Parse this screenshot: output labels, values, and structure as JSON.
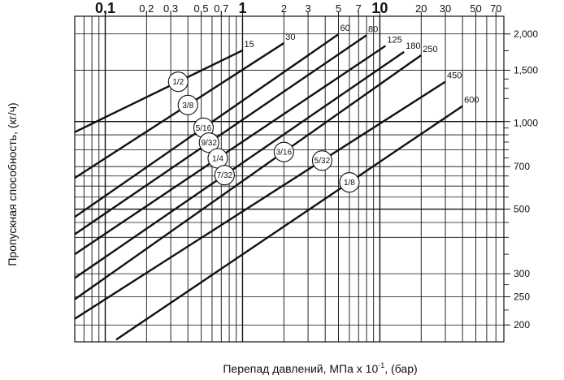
{
  "chart_data": {
    "type": "line",
    "xscale": "log",
    "yscale": "log",
    "xlim": [
      0.06,
      80
    ],
    "ylim": [
      175,
      2300
    ],
    "xlabel_text": "Перепад давлений, МПа х 10",
    "xlabel_sup": "-1",
    "xlabel_tail": ", (бар)",
    "ylabel": "Пропускная способность, (кг/ч)",
    "x_ticks": [
      {
        "value": 0.1,
        "label": "0,1",
        "major": true
      },
      {
        "value": 0.2,
        "label": "0,2",
        "major": false
      },
      {
        "value": 0.3,
        "label": "0,3",
        "major": false
      },
      {
        "value": 0.5,
        "label": "0,5",
        "major": false
      },
      {
        "value": 0.7,
        "label": "0,7",
        "major": false
      },
      {
        "value": 1,
        "label": "1",
        "major": true
      },
      {
        "value": 2,
        "label": "2",
        "major": false
      },
      {
        "value": 3,
        "label": "3",
        "major": false
      },
      {
        "value": 5,
        "label": "5",
        "major": false
      },
      {
        "value": 7,
        "label": "7",
        "major": false
      },
      {
        "value": 10,
        "label": "10",
        "major": true
      },
      {
        "value": 20,
        "label": "20",
        "major": false
      },
      {
        "value": 30,
        "label": "30",
        "major": false
      },
      {
        "value": 50,
        "label": "50",
        "major": false
      },
      {
        "value": 70,
        "label": "70",
        "major": false
      }
    ],
    "y_ticks": [
      {
        "value": 2000,
        "label": "2,000",
        "major": false
      },
      {
        "value": 1500,
        "label": "1,500",
        "major": false
      },
      {
        "value": 1000,
        "label": "1,000",
        "major": true
      },
      {
        "value": 700,
        "label": "700",
        "major": false
      },
      {
        "value": 500,
        "label": "500",
        "major": false
      },
      {
        "value": 300,
        "label": "300",
        "major": false
      },
      {
        "value": 250,
        "label": "250",
        "major": false
      },
      {
        "value": 200,
        "label": "200",
        "major": false
      }
    ],
    "series": [
      {
        "name": "1/2",
        "x": [
          0.06,
          1.0
        ],
        "y": [
          920,
          1755
        ],
        "end_label": "15",
        "marker_x": 0.34
      },
      {
        "name": "3/8",
        "x": [
          0.06,
          2.0
        ],
        "y": [
          640,
          1860
        ],
        "end_label": "30",
        "marker_x": 0.4
      },
      {
        "name": "5/16",
        "x": [
          0.06,
          5.0
        ],
        "y": [
          470,
          1995
        ],
        "end_label": "60",
        "marker_x": 0.52
      },
      {
        "name": "9/32",
        "x": [
          0.06,
          8.0
        ],
        "y": [
          410,
          1980
        ],
        "end_label": "80",
        "marker_x": 0.57
      },
      {
        "name": "1/4",
        "x": [
          0.06,
          11.0
        ],
        "y": [
          350,
          1820
        ],
        "end_label": "125",
        "marker_x": 0.66
      },
      {
        "name": "7/32",
        "x": [
          0.06,
          15.0
        ],
        "y": [
          290,
          1735
        ],
        "end_label": "180",
        "marker_x": 0.74
      },
      {
        "name": "3/16",
        "x": [
          0.06,
          20.0
        ],
        "y": [
          245,
          1690
        ],
        "end_label": "250",
        "marker_x": 2.0
      },
      {
        "name": "5/32",
        "x": [
          0.06,
          30.0
        ],
        "y": [
          210,
          1370
        ],
        "end_label": "450",
        "marker_x": 3.8
      },
      {
        "name": "1/8",
        "x": [
          0.12,
          40.0
        ],
        "y": [
          178,
          1130
        ],
        "end_label": "600",
        "marker_x": 6.0
      }
    ]
  }
}
